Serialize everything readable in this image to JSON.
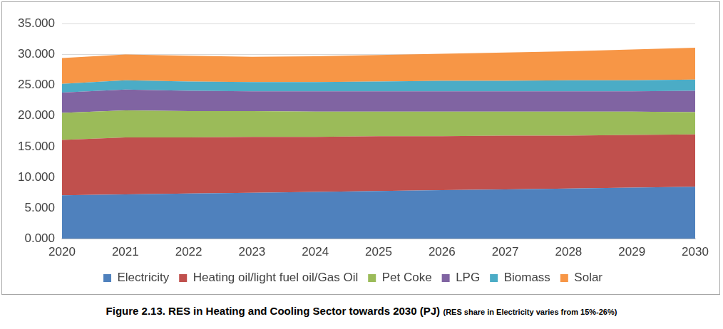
{
  "chart_data": {
    "type": "area",
    "title": "Figure 2.13.  RES in Heating and Cooling Sector towards 2030 (PJ)",
    "subtitle": "(RES share in Electricity varies from 15%-26%)",
    "categories": [
      "2020",
      "2021",
      "2022",
      "2023",
      "2024",
      "2025",
      "2026",
      "2027",
      "2028",
      "2029",
      "2030"
    ],
    "series": [
      {
        "name": "Electricity",
        "color": "#4f81bd",
        "values": [
          7.1,
          7.25,
          7.4,
          7.5,
          7.65,
          7.8,
          7.95,
          8.05,
          8.2,
          8.35,
          8.5
        ]
      },
      {
        "name": "Heating oil/light fuel oil/Gas Oil",
        "color": "#c0504d",
        "values": [
          9.0,
          9.25,
          9.1,
          9.1,
          8.95,
          8.9,
          8.75,
          8.75,
          8.6,
          8.55,
          8.5
        ]
      },
      {
        "name": "Pet Coke",
        "color": "#9bbb59",
        "values": [
          4.4,
          4.4,
          4.3,
          4.2,
          4.1,
          4.0,
          4.0,
          3.9,
          3.9,
          3.8,
          3.6
        ]
      },
      {
        "name": "LPG",
        "color": "#8064a2",
        "values": [
          3.3,
          3.4,
          3.3,
          3.2,
          3.3,
          3.3,
          3.3,
          3.3,
          3.3,
          3.3,
          3.5
        ]
      },
      {
        "name": "Biomass",
        "color": "#4bacc6",
        "values": [
          1.4,
          1.5,
          1.5,
          1.5,
          1.5,
          1.6,
          1.7,
          1.7,
          1.8,
          1.8,
          1.8
        ]
      },
      {
        "name": "Solar",
        "color": "#f79646",
        "values": [
          4.2,
          4.2,
          4.2,
          4.1,
          4.2,
          4.3,
          4.4,
          4.6,
          4.7,
          5.0,
          5.2
        ]
      }
    ],
    "ylim": [
      0,
      35
    ],
    "yticks": [
      {
        "value": 0,
        "label": "0.000"
      },
      {
        "value": 5,
        "label": "5.000"
      },
      {
        "value": 10,
        "label": "10.000"
      },
      {
        "value": 15,
        "label": "15.000"
      },
      {
        "value": 20,
        "label": "20.000"
      },
      {
        "value": 25,
        "label": "25.000"
      },
      {
        "value": 30,
        "label": "30.000"
      },
      {
        "value": 35,
        "label": "35.000"
      }
    ],
    "stacked": true,
    "grid": true,
    "legend": "bottom"
  }
}
